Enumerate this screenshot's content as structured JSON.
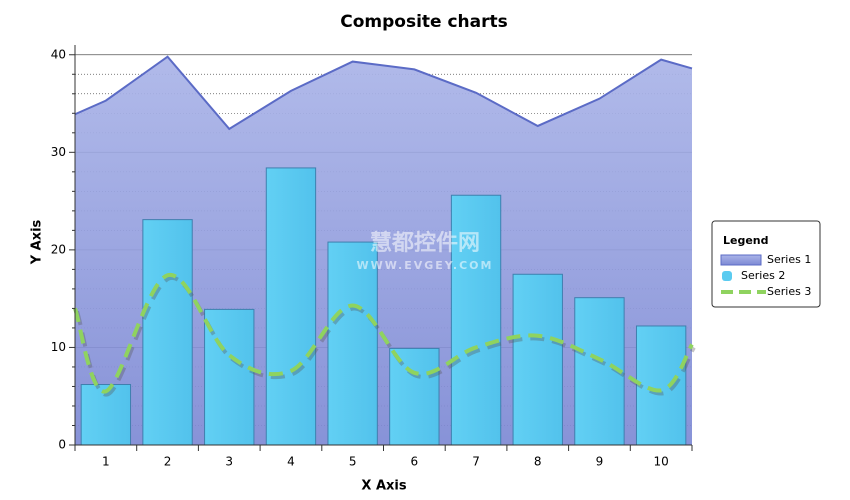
{
  "chart_data": {
    "type": "composite",
    "title": "Composite charts",
    "x_label": "X Axis",
    "y_label": "Y Axis",
    "xlim": [
      0.5,
      10.5
    ],
    "xticks": [
      1,
      2,
      3,
      4,
      5,
      6,
      7,
      8,
      9,
      10
    ],
    "ylim": [
      0,
      41
    ],
    "yticks": [
      0,
      10,
      20,
      30,
      40
    ],
    "minor_yticks": [
      2,
      4,
      6,
      8,
      12,
      14,
      16,
      18,
      22,
      24,
      26,
      28,
      32,
      34,
      36,
      38
    ],
    "grid": true,
    "legend_title": "Legend",
    "legend_position": "right",
    "watermark": "慧都控件网",
    "watermark_url": "WWW.EVGEY.COM",
    "series": [
      {
        "name": "Series 1",
        "type": "area",
        "color": "#5b6bc6",
        "x": [
          0.5,
          1,
          2,
          3,
          4,
          5,
          6,
          7,
          8,
          9,
          10,
          10.5
        ],
        "values": [
          33.9,
          35.3,
          39.8,
          32.4,
          36.3,
          39.3,
          38.5,
          36.1,
          32.7,
          35.5,
          39.5,
          38.6
        ]
      },
      {
        "name": "Series 2",
        "type": "bar",
        "color": "#5bcbf0",
        "x": [
          1,
          2,
          3,
          4,
          5,
          6,
          7,
          8,
          9,
          10
        ],
        "values": [
          6.2,
          23.1,
          13.9,
          28.4,
          20.8,
          9.9,
          25.6,
          17.5,
          15.1,
          12.2
        ]
      },
      {
        "name": "Series 3",
        "type": "line",
        "color": "#8fd35f",
        "x": [
          0.5,
          1,
          2,
          3,
          4,
          5,
          6,
          7,
          8,
          9,
          10,
          10.5
        ],
        "values": [
          14.0,
          5.5,
          17.4,
          9.2,
          7.6,
          14.3,
          7.4,
          10.0,
          11.2,
          8.8,
          5.6,
          10.3
        ]
      }
    ]
  }
}
